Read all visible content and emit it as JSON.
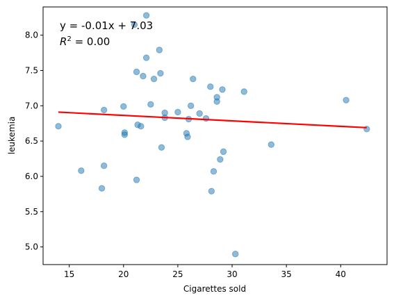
{
  "chart_data": {
    "type": "scatter",
    "xlabel": "Cigarettes sold",
    "ylabel": "leukemia",
    "xlim": [
      12.59,
      44.27
    ],
    "ylim": [
      4.75,
      8.4
    ],
    "xticks": [
      15,
      20,
      25,
      30,
      35,
      40
    ],
    "yticks": [
      5.0,
      5.5,
      6.0,
      6.5,
      7.0,
      7.5,
      8.0
    ],
    "xtick_labels": [
      "15",
      "20",
      "25",
      "30",
      "35",
      "40"
    ],
    "ytick_labels": [
      "5.0",
      "5.5",
      "6.0",
      "6.5",
      "7.0",
      "7.5",
      "8.0"
    ],
    "grid": false,
    "point_color": "#1f77b4",
    "line_color": "#ff0000",
    "annotation": {
      "equation": "y = -0.01x + 7.03",
      "r2_prefix": "R",
      "r2_sup": "2",
      "r2_suffix": " = 0.00"
    },
    "fit_line": {
      "x": [
        14.0,
        42.4
      ],
      "y": [
        6.91,
        6.69
      ]
    },
    "points": [
      [
        14.0,
        6.71
      ],
      [
        16.1,
        6.08
      ],
      [
        18.0,
        5.83
      ],
      [
        18.2,
        6.94
      ],
      [
        18.2,
        6.15
      ],
      [
        20.0,
        6.99
      ],
      [
        20.1,
        6.62
      ],
      [
        20.1,
        6.59
      ],
      [
        21.0,
        8.15
      ],
      [
        21.2,
        7.48
      ],
      [
        21.2,
        5.95
      ],
      [
        21.3,
        6.73
      ],
      [
        21.6,
        6.71
      ],
      [
        21.8,
        7.42
      ],
      [
        22.1,
        8.28
      ],
      [
        22.1,
        7.68
      ],
      [
        22.5,
        7.02
      ],
      [
        22.8,
        7.38
      ],
      [
        23.3,
        7.79
      ],
      [
        23.4,
        7.46
      ],
      [
        23.5,
        6.41
      ],
      [
        23.8,
        6.9
      ],
      [
        23.8,
        6.83
      ],
      [
        25.0,
        6.91
      ],
      [
        25.8,
        6.61
      ],
      [
        25.9,
        6.56
      ],
      [
        26.0,
        6.81
      ],
      [
        26.2,
        7.0
      ],
      [
        26.4,
        7.38
      ],
      [
        27.0,
        6.89
      ],
      [
        27.6,
        6.82
      ],
      [
        28.0,
        7.27
      ],
      [
        28.1,
        5.79
      ],
      [
        28.3,
        6.07
      ],
      [
        28.6,
        7.12
      ],
      [
        28.6,
        7.06
      ],
      [
        28.9,
        6.24
      ],
      [
        29.1,
        7.23
      ],
      [
        29.2,
        6.35
      ],
      [
        30.3,
        4.9
      ],
      [
        31.1,
        7.2
      ],
      [
        33.6,
        6.45
      ],
      [
        40.5,
        7.08
      ],
      [
        42.4,
        6.67
      ]
    ]
  }
}
